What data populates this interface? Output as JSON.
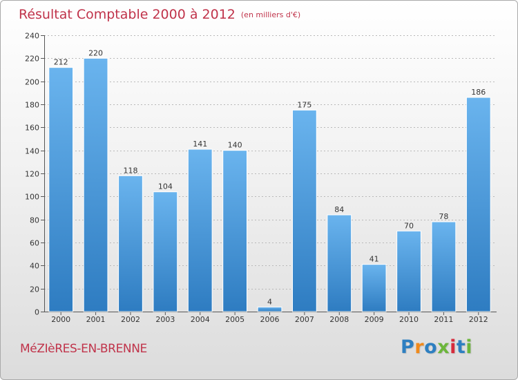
{
  "header": {
    "title": "Résultat Comptable 2000 à 2012",
    "subtitle": "(en milliers d'€)"
  },
  "footer": {
    "town": "MéZIèRES-EN-BRENNE",
    "logo_letters": [
      "P",
      "r",
      "o",
      "x",
      "i",
      "t",
      "i"
    ],
    "logo_colors": [
      "#2d7fc1",
      "#f08a1c",
      "#2d7fc1",
      "#6cb63b",
      "#d62b3c",
      "#2d7fc1",
      "#6cb63b"
    ]
  },
  "colors": {
    "bar_light": "#6ab4ee",
    "bar_dark": "#2e7cc1",
    "axis": "#555555",
    "grid": "#b8b8b8",
    "accent": "#c0334a"
  },
  "chart_data": {
    "type": "bar",
    "title": "Résultat Comptable 2000 à 2012",
    "subtitle": "(en milliers d'€)",
    "xlabel": "",
    "ylabel": "",
    "categories": [
      "2000",
      "2001",
      "2002",
      "2003",
      "2004",
      "2005",
      "2006",
      "2007",
      "2008",
      "2009",
      "2010",
      "2011",
      "2012"
    ],
    "values": [
      212,
      220,
      118,
      104,
      141,
      140,
      4,
      175,
      84,
      41,
      70,
      78,
      186
    ],
    "ylim": [
      0,
      240
    ],
    "yticks": [
      0,
      20,
      40,
      60,
      80,
      100,
      120,
      140,
      160,
      180,
      200,
      220,
      240
    ],
    "grid": true,
    "data_labels": true
  }
}
